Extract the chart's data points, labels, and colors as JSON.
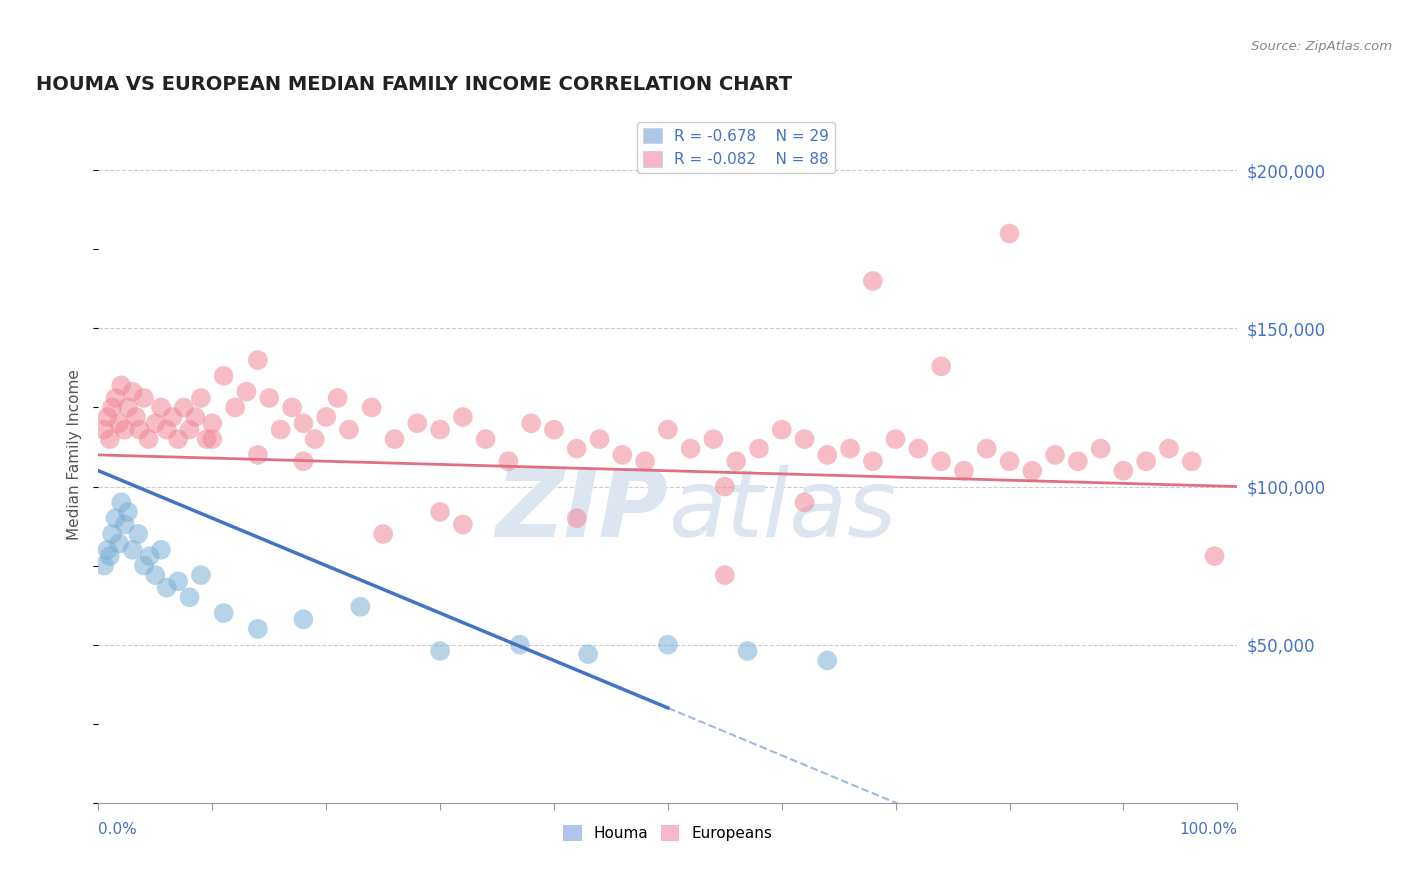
{
  "title": "HOUMA VS EUROPEAN MEDIAN FAMILY INCOME CORRELATION CHART",
  "source": "Source: ZipAtlas.com",
  "ylabel": "Median Family Income",
  "right_ytick_labels": [
    "$50,000",
    "$100,000",
    "$150,000",
    "$200,000"
  ],
  "right_ytick_values": [
    50000,
    100000,
    150000,
    200000
  ],
  "legend_blue_r": "R = -0.678",
  "legend_blue_n": "N = 29",
  "legend_pink_r": "R = -0.082",
  "legend_pink_n": "N = 88",
  "houma_legend_color": "#aec6e8",
  "europeans_legend_color": "#f4b8c8",
  "houma_scatter_color": "#7bafd4",
  "europeans_scatter_color": "#f08898",
  "houma_line_color": "#4472c4",
  "europeans_line_color": "#e07080",
  "background_color": "#ffffff",
  "grid_color": "#cccccc",
  "watermark_color": "#dde5f0",
  "houma_x": [
    0.5,
    0.8,
    1.0,
    1.2,
    1.5,
    1.8,
    2.0,
    2.3,
    2.6,
    3.0,
    3.5,
    4.0,
    4.5,
    5.0,
    5.5,
    6.0,
    7.0,
    8.0,
    9.0,
    11.0,
    14.0,
    18.0,
    23.0,
    30.0,
    37.0,
    43.0,
    50.0,
    57.0,
    64.0
  ],
  "houma_y": [
    75000,
    80000,
    78000,
    85000,
    90000,
    82000,
    95000,
    88000,
    92000,
    80000,
    85000,
    75000,
    78000,
    72000,
    80000,
    68000,
    70000,
    65000,
    72000,
    60000,
    55000,
    58000,
    62000,
    48000,
    50000,
    47000,
    50000,
    48000,
    45000
  ],
  "europeans_x": [
    0.5,
    0.8,
    1.0,
    1.2,
    1.5,
    1.8,
    2.0,
    2.3,
    2.6,
    3.0,
    3.3,
    3.6,
    4.0,
    4.4,
    5.0,
    5.5,
    6.0,
    6.5,
    7.0,
    7.5,
    8.0,
    8.5,
    9.0,
    9.5,
    10.0,
    11.0,
    12.0,
    13.0,
    14.0,
    15.0,
    16.0,
    17.0,
    18.0,
    19.0,
    20.0,
    21.0,
    22.0,
    24.0,
    26.0,
    28.0,
    30.0,
    32.0,
    34.0,
    36.0,
    38.0,
    40.0,
    42.0,
    44.0,
    46.0,
    48.0,
    50.0,
    52.0,
    54.0,
    56.0,
    58.0,
    60.0,
    62.0,
    64.0,
    66.0,
    68.0,
    70.0,
    72.0,
    74.0,
    76.0,
    78.0,
    80.0,
    82.0,
    84.0,
    86.0,
    88.0,
    90.0,
    92.0,
    94.0,
    96.0,
    98.0,
    55.0,
    62.0,
    68.0,
    74.0,
    80.0,
    30.0,
    42.0,
    55.0,
    32.0,
    25.0,
    18.0,
    14.0,
    10.0
  ],
  "europeans_y": [
    118000,
    122000,
    115000,
    125000,
    128000,
    120000,
    132000,
    118000,
    125000,
    130000,
    122000,
    118000,
    128000,
    115000,
    120000,
    125000,
    118000,
    122000,
    115000,
    125000,
    118000,
    122000,
    128000,
    115000,
    120000,
    135000,
    125000,
    130000,
    140000,
    128000,
    118000,
    125000,
    120000,
    115000,
    122000,
    128000,
    118000,
    125000,
    115000,
    120000,
    118000,
    122000,
    115000,
    108000,
    120000,
    118000,
    112000,
    115000,
    110000,
    108000,
    118000,
    112000,
    115000,
    108000,
    112000,
    118000,
    115000,
    110000,
    112000,
    108000,
    115000,
    112000,
    108000,
    105000,
    112000,
    108000,
    105000,
    110000,
    108000,
    112000,
    105000,
    108000,
    112000,
    108000,
    78000,
    100000,
    95000,
    165000,
    138000,
    180000,
    92000,
    90000,
    72000,
    88000,
    85000,
    108000,
    110000,
    115000
  ]
}
